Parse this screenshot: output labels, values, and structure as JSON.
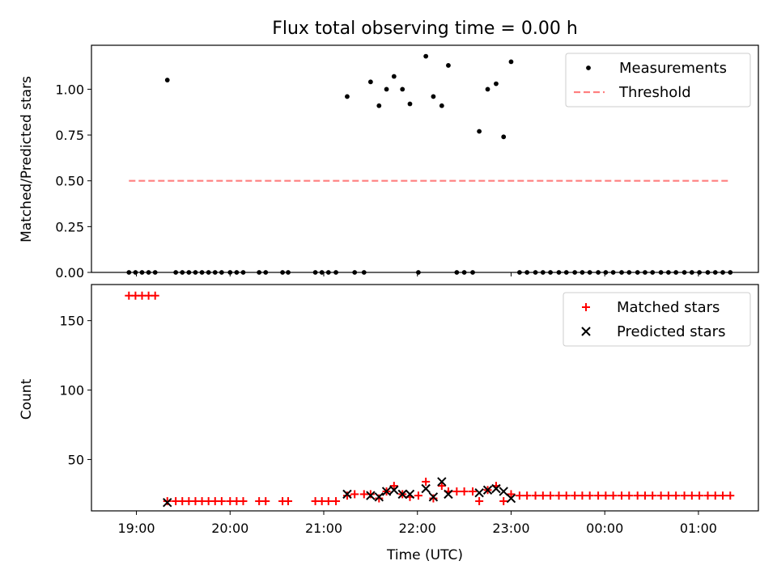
{
  "chart_data": [
    {
      "type": "scatter",
      "title": "Flux total observing time = 0.00 h",
      "ylabel": "Matched/Predicted stars",
      "xlabel": "",
      "x_axis": {
        "type": "time",
        "range_hours": [
          18.52,
          25.64
        ],
        "tick_values_hours": [
          19,
          20,
          21,
          22,
          23,
          24,
          25
        ],
        "tick_labels": [
          "19:00",
          "20:00",
          "21:00",
          "22:00",
          "23:00",
          "00:00",
          "01:00"
        ],
        "tick_labels_shown": false
      },
      "ylim": [
        0,
        1.24
      ],
      "yticks": [
        0,
        0.25,
        0.5,
        0.75,
        1.0
      ],
      "ytick_labels": [
        "0.00",
        "0.25",
        "0.50",
        "0.75",
        "1.00"
      ],
      "grid": false,
      "legend_position": "upper right",
      "series": [
        {
          "name": "Measurements",
          "kind": "scatter",
          "marker": "dot",
          "color": "#000000",
          "points": [
            {
              "t": 18.92,
              "v": 0
            },
            {
              "t": 18.99,
              "v": 0
            },
            {
              "t": 19.06,
              "v": 0
            },
            {
              "t": 19.13,
              "v": 0
            },
            {
              "t": 19.2,
              "v": 0
            },
            {
              "t": 19.33,
              "v": 1.05
            },
            {
              "t": 19.42,
              "v": 0
            },
            {
              "t": 19.49,
              "v": 0
            },
            {
              "t": 19.56,
              "v": 0
            },
            {
              "t": 19.63,
              "v": 0
            },
            {
              "t": 19.7,
              "v": 0
            },
            {
              "t": 19.77,
              "v": 0
            },
            {
              "t": 19.84,
              "v": 0
            },
            {
              "t": 19.91,
              "v": 0
            },
            {
              "t": 20.0,
              "v": 0
            },
            {
              "t": 20.07,
              "v": 0
            },
            {
              "t": 20.14,
              "v": 0
            },
            {
              "t": 20.31,
              "v": 0
            },
            {
              "t": 20.38,
              "v": 0
            },
            {
              "t": 20.56,
              "v": 0
            },
            {
              "t": 20.62,
              "v": 0
            },
            {
              "t": 20.91,
              "v": 0
            },
            {
              "t": 20.98,
              "v": 0
            },
            {
              "t": 21.05,
              "v": 0
            },
            {
              "t": 21.13,
              "v": 0
            },
            {
              "t": 21.25,
              "v": 0.96
            },
            {
              "t": 21.33,
              "v": 0
            },
            {
              "t": 21.43,
              "v": 0
            },
            {
              "t": 21.5,
              "v": 1.04
            },
            {
              "t": 21.59,
              "v": 0.91
            },
            {
              "t": 21.67,
              "v": 1.0
            },
            {
              "t": 21.75,
              "v": 1.07
            },
            {
              "t": 21.84,
              "v": 1.0
            },
            {
              "t": 21.92,
              "v": 0.92
            },
            {
              "t": 22.01,
              "v": 0
            },
            {
              "t": 22.09,
              "v": 1.18
            },
            {
              "t": 22.17,
              "v": 0.96
            },
            {
              "t": 22.26,
              "v": 0.91
            },
            {
              "t": 22.33,
              "v": 1.13
            },
            {
              "t": 22.42,
              "v": 0
            },
            {
              "t": 22.5,
              "v": 0
            },
            {
              "t": 22.59,
              "v": 0
            },
            {
              "t": 22.66,
              "v": 0.77
            },
            {
              "t": 22.75,
              "v": 1.0
            },
            {
              "t": 22.84,
              "v": 1.03
            },
            {
              "t": 22.92,
              "v": 0.74
            },
            {
              "t": 23.0,
              "v": 1.15
            },
            {
              "t": 23.09,
              "v": 0
            },
            {
              "t": 23.17,
              "v": 0
            },
            {
              "t": 23.26,
              "v": 0
            },
            {
              "t": 23.34,
              "v": 0
            },
            {
              "t": 23.42,
              "v": 0
            },
            {
              "t": 23.51,
              "v": 0
            },
            {
              "t": 23.59,
              "v": 0
            },
            {
              "t": 23.68,
              "v": 0
            },
            {
              "t": 23.76,
              "v": 0
            },
            {
              "t": 23.84,
              "v": 0
            },
            {
              "t": 23.93,
              "v": 0
            },
            {
              "t": 24.01,
              "v": 0
            },
            {
              "t": 24.09,
              "v": 0
            },
            {
              "t": 24.18,
              "v": 0
            },
            {
              "t": 24.26,
              "v": 0
            },
            {
              "t": 24.35,
              "v": 0
            },
            {
              "t": 24.43,
              "v": 0
            },
            {
              "t": 24.51,
              "v": 0
            },
            {
              "t": 24.6,
              "v": 0
            },
            {
              "t": 24.68,
              "v": 0
            },
            {
              "t": 24.76,
              "v": 0
            },
            {
              "t": 24.85,
              "v": 0
            },
            {
              "t": 24.93,
              "v": 0
            },
            {
              "t": 25.01,
              "v": 0
            },
            {
              "t": 25.1,
              "v": 0
            },
            {
              "t": 25.18,
              "v": 0
            },
            {
              "t": 25.26,
              "v": 0
            },
            {
              "t": 25.34,
              "v": 0
            }
          ]
        },
        {
          "name": "Threshold",
          "kind": "line",
          "style": "dashed",
          "color": "#ff7f7f",
          "points": [
            {
              "t": 18.92,
              "v": 0.5
            },
            {
              "t": 25.34,
              "v": 0.5
            }
          ]
        }
      ]
    },
    {
      "type": "scatter",
      "title": "",
      "ylabel": "Count",
      "xlabel": "Time (UTC)",
      "x_axis": {
        "type": "time",
        "range_hours": [
          18.52,
          25.64
        ],
        "tick_values_hours": [
          19,
          20,
          21,
          22,
          23,
          24,
          25
        ],
        "tick_labels": [
          "19:00",
          "20:00",
          "21:00",
          "22:00",
          "23:00",
          "00:00",
          "01:00"
        ],
        "tick_labels_shown": true
      },
      "ylim": [
        13,
        176
      ],
      "yticks": [
        50,
        100,
        150
      ],
      "ytick_labels": [
        "50",
        "100",
        "150"
      ],
      "grid": false,
      "legend_position": "upper right",
      "series": [
        {
          "name": "Matched stars",
          "kind": "scatter",
          "marker": "plus",
          "color": "#ff0000",
          "points": [
            {
              "t": 18.92,
              "v": 168
            },
            {
              "t": 18.99,
              "v": 168
            },
            {
              "t": 19.06,
              "v": 168
            },
            {
              "t": 19.13,
              "v": 168
            },
            {
              "t": 19.2,
              "v": 168
            },
            {
              "t": 19.33,
              "v": 20
            },
            {
              "t": 19.42,
              "v": 20
            },
            {
              "t": 19.49,
              "v": 20
            },
            {
              "t": 19.56,
              "v": 20
            },
            {
              "t": 19.63,
              "v": 20
            },
            {
              "t": 19.7,
              "v": 20
            },
            {
              "t": 19.77,
              "v": 20
            },
            {
              "t": 19.84,
              "v": 20
            },
            {
              "t": 19.91,
              "v": 20
            },
            {
              "t": 20.0,
              "v": 20
            },
            {
              "t": 20.07,
              "v": 20
            },
            {
              "t": 20.14,
              "v": 20
            },
            {
              "t": 20.31,
              "v": 20
            },
            {
              "t": 20.38,
              "v": 20
            },
            {
              "t": 20.56,
              "v": 20
            },
            {
              "t": 20.62,
              "v": 20
            },
            {
              "t": 20.91,
              "v": 20
            },
            {
              "t": 20.98,
              "v": 20
            },
            {
              "t": 21.05,
              "v": 20
            },
            {
              "t": 21.13,
              "v": 20
            },
            {
              "t": 21.25,
              "v": 24
            },
            {
              "t": 21.33,
              "v": 25
            },
            {
              "t": 21.43,
              "v": 25
            },
            {
              "t": 21.5,
              "v": 25
            },
            {
              "t": 21.59,
              "v": 22
            },
            {
              "t": 21.67,
              "v": 27
            },
            {
              "t": 21.75,
              "v": 31
            },
            {
              "t": 21.84,
              "v": 25
            },
            {
              "t": 21.92,
              "v": 23
            },
            {
              "t": 22.01,
              "v": 24
            },
            {
              "t": 22.09,
              "v": 34
            },
            {
              "t": 22.17,
              "v": 22
            },
            {
              "t": 22.26,
              "v": 31
            },
            {
              "t": 22.33,
              "v": 27
            },
            {
              "t": 22.42,
              "v": 27
            },
            {
              "t": 22.5,
              "v": 27
            },
            {
              "t": 22.59,
              "v": 27
            },
            {
              "t": 22.66,
              "v": 20
            },
            {
              "t": 22.75,
              "v": 28
            },
            {
              "t": 22.84,
              "v": 31
            },
            {
              "t": 22.92,
              "v": 20
            },
            {
              "t": 23.0,
              "v": 25
            },
            {
              "t": 23.09,
              "v": 24
            },
            {
              "t": 23.17,
              "v": 24
            },
            {
              "t": 23.26,
              "v": 24
            },
            {
              "t": 23.34,
              "v": 24
            },
            {
              "t": 23.42,
              "v": 24
            },
            {
              "t": 23.51,
              "v": 24
            },
            {
              "t": 23.59,
              "v": 24
            },
            {
              "t": 23.68,
              "v": 24
            },
            {
              "t": 23.76,
              "v": 24
            },
            {
              "t": 23.84,
              "v": 24
            },
            {
              "t": 23.93,
              "v": 24
            },
            {
              "t": 24.01,
              "v": 24
            },
            {
              "t": 24.09,
              "v": 24
            },
            {
              "t": 24.18,
              "v": 24
            },
            {
              "t": 24.26,
              "v": 24
            },
            {
              "t": 24.35,
              "v": 24
            },
            {
              "t": 24.43,
              "v": 24
            },
            {
              "t": 24.51,
              "v": 24
            },
            {
              "t": 24.6,
              "v": 24
            },
            {
              "t": 24.68,
              "v": 24
            },
            {
              "t": 24.76,
              "v": 24
            },
            {
              "t": 24.85,
              "v": 24
            },
            {
              "t": 24.93,
              "v": 24
            },
            {
              "t": 25.01,
              "v": 24
            },
            {
              "t": 25.1,
              "v": 24
            },
            {
              "t": 25.18,
              "v": 24
            },
            {
              "t": 25.26,
              "v": 24
            },
            {
              "t": 25.34,
              "v": 24
            }
          ]
        },
        {
          "name": "Predicted stars",
          "kind": "scatter",
          "marker": "x",
          "color": "#000000",
          "points": [
            {
              "t": 19.33,
              "v": 19
            },
            {
              "t": 21.25,
              "v": 25
            },
            {
              "t": 21.5,
              "v": 24
            },
            {
              "t": 21.59,
              "v": 23
            },
            {
              "t": 21.67,
              "v": 27
            },
            {
              "t": 21.75,
              "v": 28
            },
            {
              "t": 21.84,
              "v": 25
            },
            {
              "t": 21.92,
              "v": 25
            },
            {
              "t": 22.09,
              "v": 29
            },
            {
              "t": 22.17,
              "v": 23
            },
            {
              "t": 22.26,
              "v": 34
            },
            {
              "t": 22.33,
              "v": 25
            },
            {
              "t": 22.66,
              "v": 26
            },
            {
              "t": 22.75,
              "v": 28
            },
            {
              "t": 22.84,
              "v": 29
            },
            {
              "t": 22.92,
              "v": 27
            },
            {
              "t": 23.0,
              "v": 22
            }
          ]
        }
      ]
    }
  ]
}
